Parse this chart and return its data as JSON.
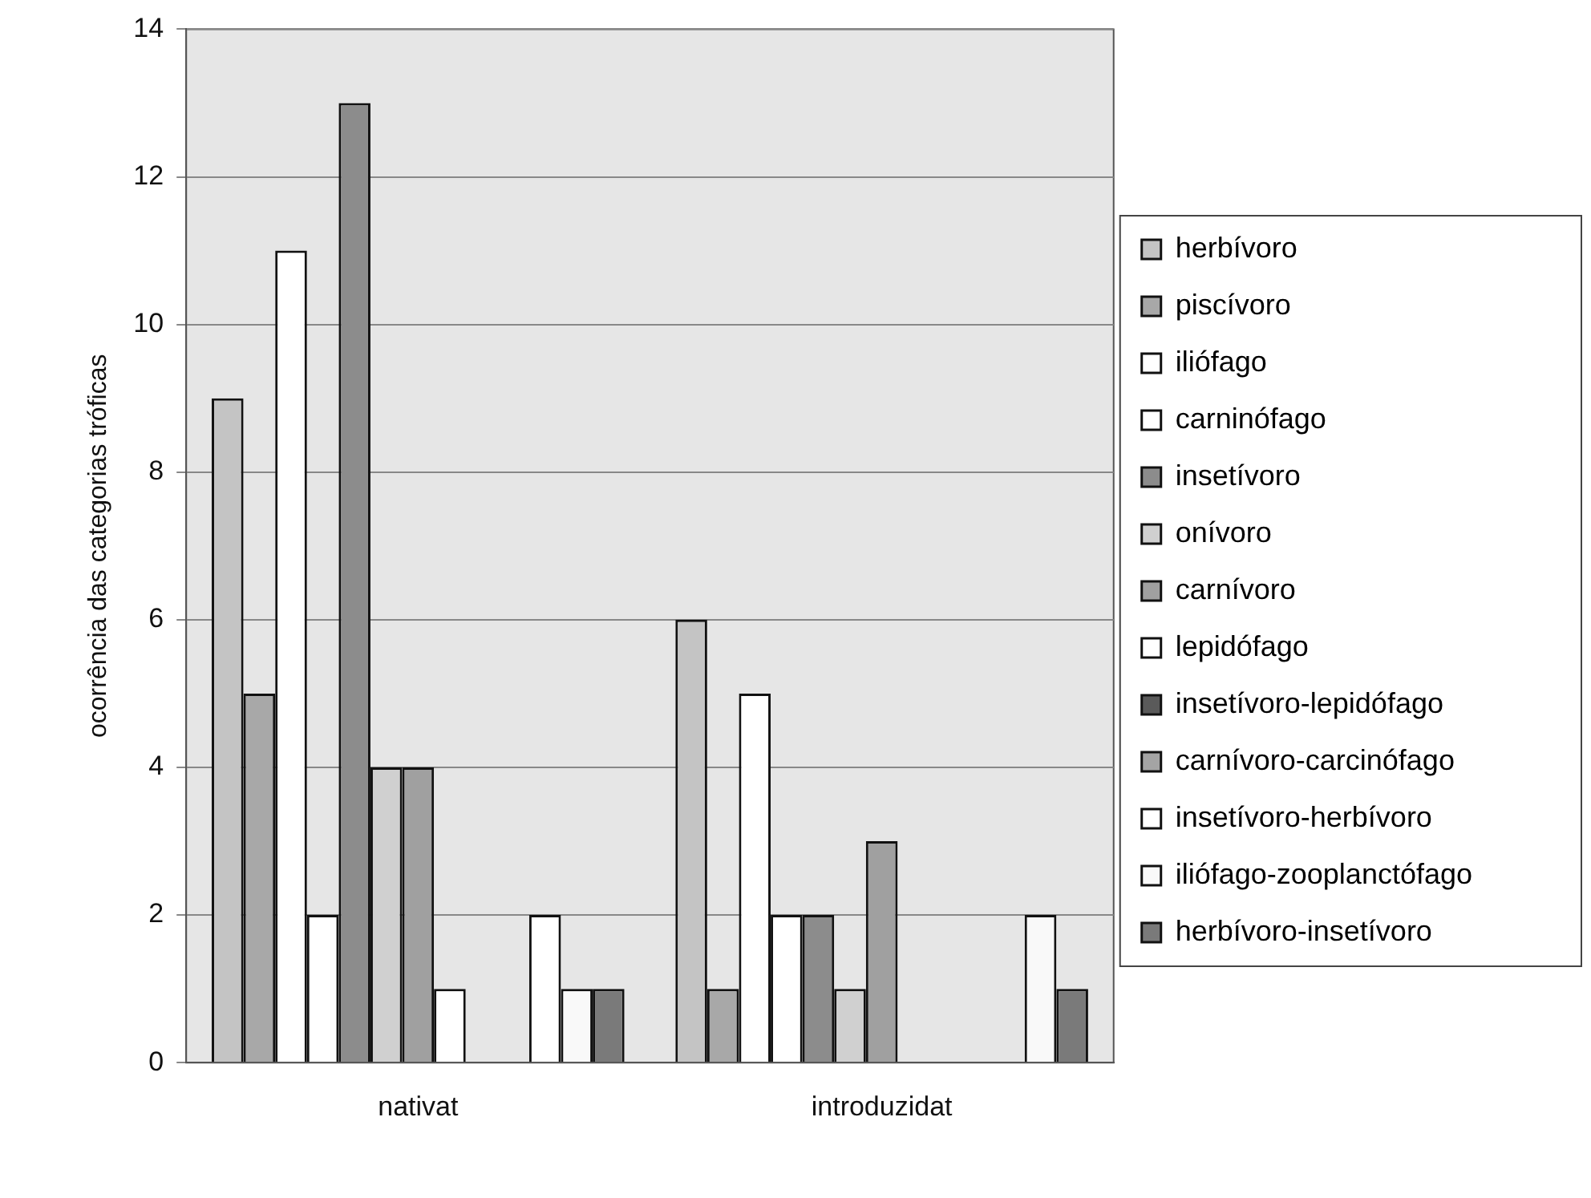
{
  "chart_data": {
    "type": "bar",
    "ylabel": "ocorrência das categorias tróficas",
    "categories": [
      "nativat",
      "introduzidat"
    ],
    "series": [
      {
        "name": "herbívoro",
        "color": "#c4c4c4",
        "values": [
          9,
          6
        ]
      },
      {
        "name": "piscívoro",
        "color": "#a8a8a8",
        "values": [
          5,
          1
        ]
      },
      {
        "name": "iliófago",
        "color": "#ffffff",
        "values": [
          11,
          5
        ]
      },
      {
        "name": "carninófago",
        "color": "#ffffff",
        "values": [
          2,
          2
        ]
      },
      {
        "name": "insetívoro",
        "color": "#8c8c8c",
        "values": [
          13,
          2
        ]
      },
      {
        "name": "onívoro",
        "color": "#d0d0d0",
        "values": [
          4,
          1
        ]
      },
      {
        "name": "carnívoro",
        "color": "#a0a0a0",
        "values": [
          4,
          3
        ]
      },
      {
        "name": "lepidófago",
        "color": "#ffffff",
        "values": [
          1,
          null
        ]
      },
      {
        "name": "insetívoro-lepidófago",
        "color": "#5a5a5a",
        "values": [
          null,
          null
        ]
      },
      {
        "name": "carnívoro-carcinófago",
        "color": "#a4a4a4",
        "values": [
          null,
          null
        ]
      },
      {
        "name": "insetívoro-herbívoro",
        "color": "#ffffff",
        "values": [
          2,
          null
        ]
      },
      {
        "name": "iliófago-zooplanctófago",
        "color": "#f9f9f9",
        "values": [
          1,
          2
        ]
      },
      {
        "name": "herbívoro-insetívoro",
        "color": "#7a7a7a",
        "values": [
          1,
          1
        ]
      }
    ],
    "ylim": [
      0,
      14
    ],
    "yticks": [
      0,
      2,
      4,
      6,
      8,
      10,
      12,
      14
    ],
    "grid": "y",
    "legend": "right"
  }
}
